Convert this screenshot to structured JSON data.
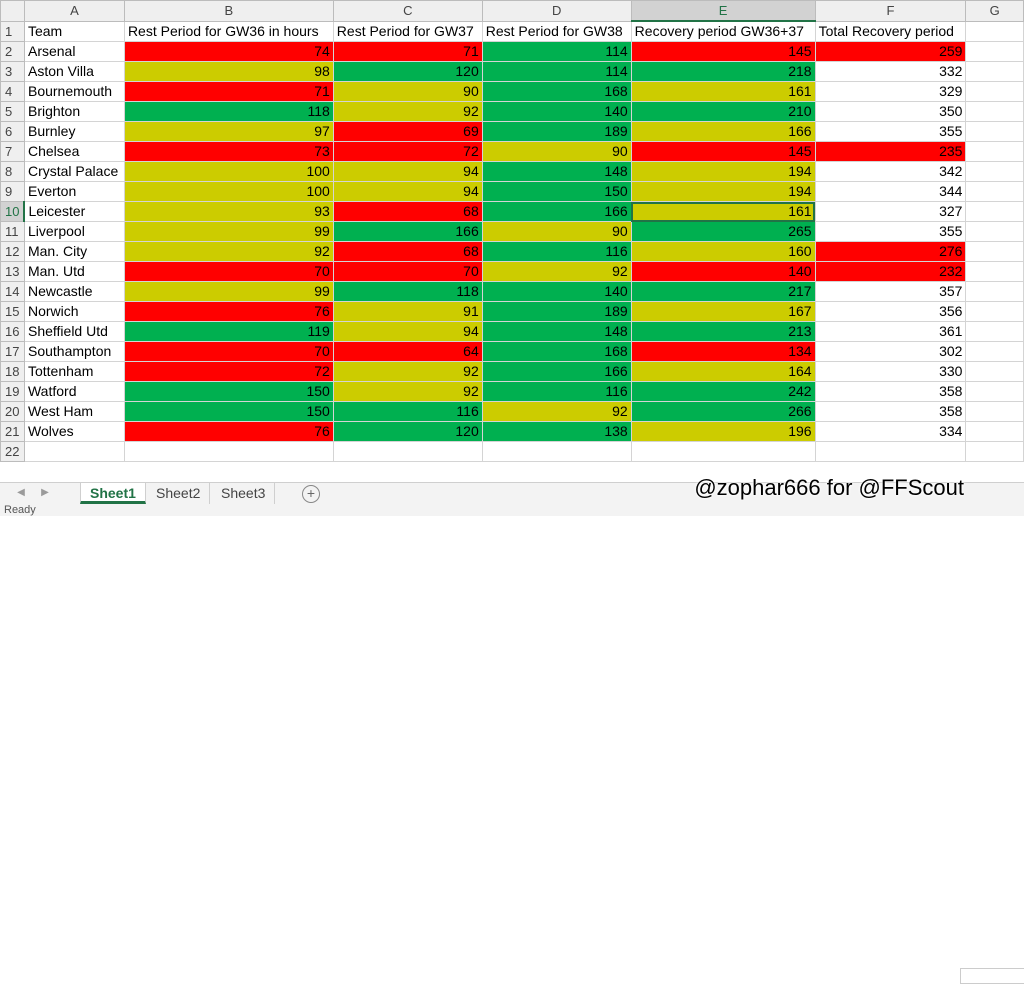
{
  "columns": [
    "A",
    "B",
    "C",
    "D",
    "E",
    "F",
    "G"
  ],
  "headers": [
    "Team",
    "Rest Period for GW36 in hours",
    "Rest Period for GW37",
    "Rest Period for GW38",
    "Recovery period GW36+37",
    "Total Recovery period"
  ],
  "rows": [
    [
      "Arsenal",
      "74",
      "71",
      "114",
      "145",
      "259"
    ],
    [
      "Aston Villa",
      "98",
      "120",
      "114",
      "218",
      "332"
    ],
    [
      "Bournemouth",
      "71",
      "90",
      "168",
      "161",
      "329"
    ],
    [
      "Brighton",
      "118",
      "92",
      "140",
      "210",
      "350"
    ],
    [
      "Burnley",
      "97",
      "69",
      "189",
      "166",
      "355"
    ],
    [
      "Chelsea",
      "73",
      "72",
      "90",
      "145",
      "235"
    ],
    [
      "Crystal Palace",
      "100",
      "94",
      "148",
      "194",
      "342"
    ],
    [
      "Everton",
      "100",
      "94",
      "150",
      "194",
      "344"
    ],
    [
      "Leicester",
      "93",
      "68",
      "166",
      "161",
      "327"
    ],
    [
      "Liverpool",
      "99",
      "166",
      "90",
      "265",
      "355"
    ],
    [
      "Man. City",
      "92",
      "68",
      "116",
      "160",
      "276"
    ],
    [
      "Man. Utd",
      "70",
      "70",
      "92",
      "140",
      "232"
    ],
    [
      "Newcastle",
      "99",
      "118",
      "140",
      "217",
      "357"
    ],
    [
      "Norwich",
      "76",
      "91",
      "189",
      "167",
      "356"
    ],
    [
      "Sheffield Utd",
      "119",
      "94",
      "148",
      "213",
      "361"
    ],
    [
      "Southampton",
      "70",
      "64",
      "168",
      "134",
      "302"
    ],
    [
      "Tottenham",
      "72",
      "92",
      "166",
      "164",
      "330"
    ],
    [
      "Watford",
      "150",
      "92",
      "116",
      "242",
      "358"
    ],
    [
      "West Ham",
      "150",
      "116",
      "92",
      "266",
      "358"
    ],
    [
      "Wolves",
      "76",
      "120",
      "138",
      "196",
      "334"
    ]
  ],
  "fills": [
    [
      "red",
      "red",
      "grn",
      "red",
      "red"
    ],
    [
      "yel",
      "grn",
      "grn",
      "grn",
      "none"
    ],
    [
      "red",
      "yel",
      "grn",
      "yel",
      "none"
    ],
    [
      "grn",
      "yel",
      "grn",
      "grn",
      "none"
    ],
    [
      "yel",
      "red",
      "grn",
      "yel",
      "none"
    ],
    [
      "red",
      "red",
      "yel",
      "red",
      "red"
    ],
    [
      "yel",
      "yel",
      "grn",
      "yel",
      "none"
    ],
    [
      "yel",
      "yel",
      "grn",
      "yel",
      "none"
    ],
    [
      "yel",
      "red",
      "grn",
      "yel",
      "none"
    ],
    [
      "yel",
      "grn",
      "yel",
      "grn",
      "none"
    ],
    [
      "yel",
      "red",
      "grn",
      "yel",
      "red"
    ],
    [
      "red",
      "red",
      "yel",
      "red",
      "red"
    ],
    [
      "yel",
      "grn",
      "grn",
      "grn",
      "none"
    ],
    [
      "red",
      "yel",
      "grn",
      "yel",
      "none"
    ],
    [
      "grn",
      "yel",
      "grn",
      "grn",
      "none"
    ],
    [
      "red",
      "red",
      "grn",
      "red",
      "none"
    ],
    [
      "red",
      "yel",
      "grn",
      "yel",
      "none"
    ],
    [
      "grn",
      "yel",
      "grn",
      "grn",
      "none"
    ],
    [
      "grn",
      "grn",
      "yel",
      "grn",
      "none"
    ],
    [
      "red",
      "grn",
      "grn",
      "yel",
      "none"
    ]
  ],
  "red_text_fills": [
    "red"
  ],
  "last_row_number": "22",
  "active_cell": {
    "column": "E",
    "row": "10"
  },
  "sheet_tabs": [
    "Sheet1",
    "Sheet2",
    "Sheet3"
  ],
  "active_sheet": "Sheet1",
  "add_sheet_icon": "+",
  "watermark": "@zophar666 for @FFScout",
  "status_text": "Ready",
  "colors": {
    "red": "#ff0000",
    "yellow": "#cccc00",
    "green": "#00b050",
    "excel_green": "#217346"
  }
}
